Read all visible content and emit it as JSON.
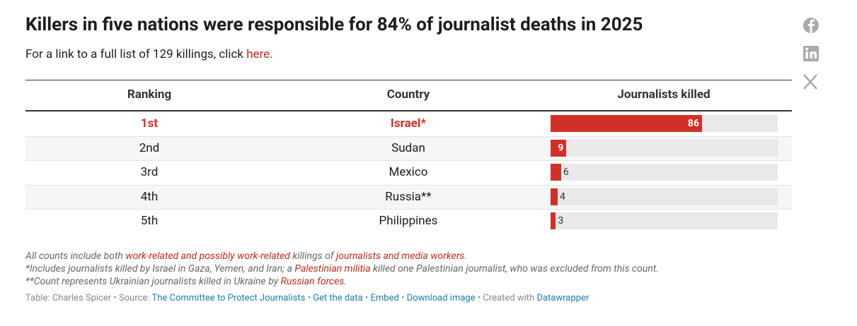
{
  "header": {
    "title": "Killers in five nations were responsible for 84% of journalist deaths in 2025",
    "intro": [
      {
        "text": "For a link to a full list of 129 killings, click "
      },
      {
        "text": "here.",
        "link": true
      }
    ]
  },
  "table": {
    "columns": [
      "Ranking",
      "Country",
      "Journalists killed"
    ],
    "rows": [
      [
        "1st",
        "Israel*",
        86
      ],
      [
        "2nd",
        "Sudan",
        9
      ],
      [
        "3rd",
        "Mexico",
        6
      ],
      [
        "4th",
        "Russia**",
        4
      ],
      [
        "5th",
        "Philippines",
        3
      ]
    ],
    "highlight_row": 0,
    "bar_color": "#d13027",
    "xlim": [
      0,
      129
    ]
  },
  "notes": [
    [
      {
        "text": "All counts include both "
      },
      {
        "text": "work-related and possibly work-related",
        "link": true
      },
      {
        "text": " killings of "
      },
      {
        "text": "journalists and media workers",
        "link": true
      },
      {
        "text": "."
      }
    ],
    [
      {
        "text": "*Includes journalists killed by Israel in Gaza, Yemen, and Iran; a "
      },
      {
        "text": "Palestinian militia",
        "link": true
      },
      {
        "text": " killed one Palestinian journalist, who was excluded from this count."
      }
    ],
    [
      {
        "text": "**Count represents Ukrainian journalists killed in Ukraine by "
      },
      {
        "text": "Russian forces",
        "link": true
      },
      {
        "text": "."
      }
    ]
  ],
  "footer": [
    {
      "text": "Table: Charles Spicer • Source: "
    },
    {
      "text": "The Committee to Protect Journalists",
      "link": true
    },
    {
      "text": " • "
    },
    {
      "text": "Get the data",
      "link": true
    },
    {
      "text": " • "
    },
    {
      "text": "Embed",
      "link": true
    },
    {
      "text": "  • "
    },
    {
      "text": "Download image",
      "link": true
    },
    {
      "text": " • Created with "
    },
    {
      "text": "Datawrapper",
      "link": true
    }
  ]
}
